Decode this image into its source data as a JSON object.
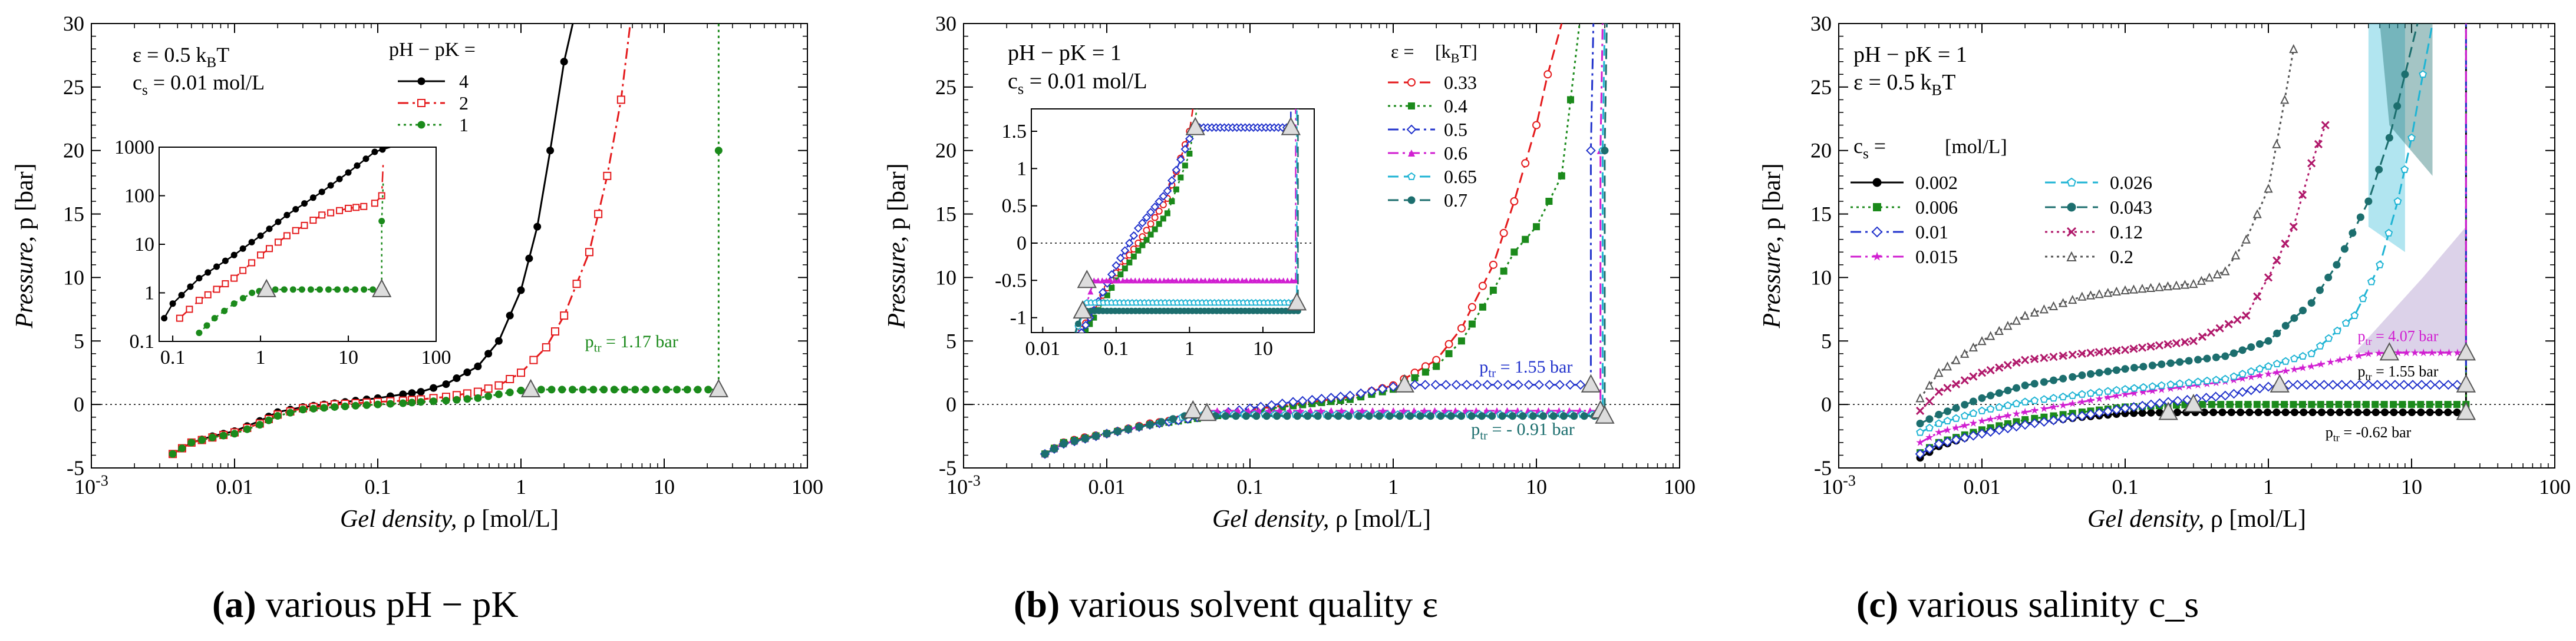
{
  "figure": {
    "captions": [
      {
        "letter": "(a)",
        "text": "various pH − pK"
      },
      {
        "letter": "(b)",
        "text": "various solvent quality ε"
      },
      {
        "letter": "(c)",
        "text": "various salinity c_s"
      }
    ]
  },
  "chart_data": [
    {
      "type": "line",
      "title": "",
      "xlabel": "Gel density, ρ [mol/L]",
      "ylabel": "Pressure, p [bar]",
      "xscale": "log",
      "xlim": [
        0.001,
        100
      ],
      "ylim": [
        -5,
        30
      ],
      "xticks": [
        "10^-3",
        "0.01",
        "0.1",
        "1",
        "10",
        "100"
      ],
      "yticks": [
        "-5",
        "0",
        "5",
        "10",
        "15",
        "20",
        "25",
        "30"
      ],
      "annotations": [
        "ε = 0.5 k_BT",
        "c_s = 0.01 mol/L",
        "p_tr = 1.17 bar"
      ],
      "legend_title": "pH − pK =",
      "series": [
        {
          "name": "4",
          "color": "#000000",
          "marker": "filled-circle",
          "dash": "solid",
          "x": [
            0.0037,
            0.005,
            0.007,
            0.01,
            0.015,
            0.02,
            0.03,
            0.05,
            0.07,
            0.1,
            0.15,
            0.2,
            0.3,
            0.5,
            0.7,
            1.0,
            1.3,
            1.6,
            2.0,
            2.3
          ],
          "y": [
            -3.9,
            -3.0,
            -2.5,
            -2.1,
            -1.3,
            -0.6,
            -0.2,
            0.1,
            0.3,
            0.5,
            0.8,
            1.0,
            1.6,
            3.0,
            5.0,
            9.0,
            14.0,
            20.0,
            27.0,
            30.0
          ]
        },
        {
          "name": "2",
          "color": "#e41a1c",
          "marker": "open-square",
          "dash": "dash-dot",
          "x": [
            0.0037,
            0.005,
            0.007,
            0.01,
            0.015,
            0.02,
            0.03,
            0.05,
            0.07,
            0.1,
            0.15,
            0.2,
            0.3,
            0.5,
            0.7,
            1.0,
            1.5,
            2.0,
            3.0,
            4.0,
            5.0,
            5.8
          ],
          "y": [
            -3.9,
            -3.0,
            -2.6,
            -2.2,
            -1.5,
            -0.8,
            -0.3,
            0.0,
            0.1,
            0.2,
            0.3,
            0.4,
            0.6,
            1.0,
            1.5,
            2.5,
            4.5,
            7.0,
            12.0,
            18.0,
            24.0,
            30.0
          ]
        },
        {
          "name": "1",
          "color": "#1b8a1b",
          "marker": "filled-circle",
          "dash": "dotted",
          "x": [
            0.0037,
            0.005,
            0.007,
            0.01,
            0.015,
            0.02,
            0.03,
            0.05,
            0.07,
            0.1,
            0.15,
            0.2,
            0.3,
            0.5,
            0.7,
            1.0,
            1.17,
            24.0,
            24.0,
            24.0
          ],
          "y": [
            -3.9,
            -3.0,
            -2.6,
            -2.3,
            -1.6,
            -0.9,
            -0.4,
            -0.2,
            -0.1,
            0.0,
            0.1,
            0.2,
            0.3,
            0.5,
            0.8,
            1.1,
            1.17,
            1.17,
            20.0,
            30.0
          ]
        }
      ],
      "inset": {
        "xscale": "log",
        "yscale": "log",
        "xlim": [
          0.07,
          100
        ],
        "ylim": [
          0.1,
          1000
        ],
        "xticks": [
          "0.1",
          "1",
          "10",
          "100"
        ],
        "yticks": [
          "0.1",
          "1",
          "10",
          "100",
          "1000"
        ],
        "series": [
          {
            "name": "4",
            "x": [
              0.08,
              0.1,
              0.2,
              0.5,
              1.0,
              2.0,
              5.0,
              10.0,
              20.0,
              30.0
            ],
            "y": [
              0.3,
              0.6,
              2.0,
              6.0,
              15.0,
              40.0,
              120.0,
              300.0,
              800.0,
              1000.0
            ]
          },
          {
            "name": "2",
            "x": [
              0.12,
              0.2,
              0.5,
              1.0,
              2.0,
              5.0,
              10.0,
              15.0,
              20.0,
              24.0,
              25.0
            ],
            "y": [
              0.3,
              0.7,
              2.0,
              6.0,
              15.0,
              40.0,
              55.0,
              60.0,
              70.0,
              100.0,
              500.0
            ]
          },
          {
            "name": "1",
            "x": [
              0.2,
              0.3,
              0.5,
              0.8,
              1.17,
              24.0,
              24.0,
              25.0
            ],
            "y": [
              0.15,
              0.3,
              0.6,
              1.0,
              1.17,
              1.17,
              30.0,
              200.0
            ]
          }
        ]
      }
    },
    {
      "type": "line",
      "title": "",
      "xlabel": "Gel density, ρ [mol/L]",
      "ylabel": "Pressure, p [bar]",
      "xscale": "log",
      "xlim": [
        0.001,
        100
      ],
      "ylim": [
        -5,
        30
      ],
      "xticks": [
        "10^-3",
        "0.01",
        "0.1",
        "1",
        "10",
        "100"
      ],
      "yticks": [
        "-5",
        "0",
        "5",
        "10",
        "15",
        "20",
        "25",
        "30"
      ],
      "annotations": [
        "pH − pK = 1",
        "c_s = 0.01 mol/L",
        "p_tr = 1.55 bar",
        "p_tr = - 0.91 bar"
      ],
      "legend_title": "ε =",
      "legend_unit": "[k_BT]",
      "series": [
        {
          "name": "0.33",
          "color": "#e41a1c",
          "marker": "open-circle",
          "dash": "dashed",
          "x": [
            0.0037,
            0.005,
            0.007,
            0.01,
            0.02,
            0.05,
            0.1,
            0.2,
            0.5,
            1.0,
            2.0,
            3.0,
            5.0,
            7.0,
            10.0,
            12.0,
            15.0
          ],
          "y": [
            -3.9,
            -3.0,
            -2.6,
            -2.3,
            -1.5,
            -0.9,
            -0.4,
            0.0,
            0.6,
            1.5,
            3.5,
            6.0,
            11.0,
            16.0,
            22.0,
            26.0,
            30.0
          ]
        },
        {
          "name": "0.4",
          "color": "#1b8a1b",
          "marker": "filled-square",
          "dash": "dotted",
          "x": [
            0.0037,
            0.005,
            0.01,
            0.02,
            0.05,
            0.1,
            0.2,
            0.5,
            1.0,
            2.0,
            3.0,
            5.0,
            7.0,
            10.0,
            15.0,
            20.0
          ],
          "y": [
            -3.9,
            -3.0,
            -2.3,
            -1.6,
            -1.0,
            -0.5,
            -0.1,
            0.4,
            1.2,
            3.0,
            5.0,
            9.0,
            12.0,
            14.0,
            18.0,
            30.0
          ]
        },
        {
          "name": "0.5",
          "color": "#2233cc",
          "marker": "open-diamond",
          "dash": "dash-dot",
          "x": [
            0.0037,
            0.005,
            0.01,
            0.02,
            0.05,
            0.1,
            0.2,
            0.5,
            1.0,
            1.2,
            24.0,
            24.0,
            25.0
          ],
          "y": [
            -3.9,
            -3.1,
            -2.3,
            -1.6,
            -0.9,
            -0.3,
            0.2,
            0.7,
            1.4,
            1.55,
            1.55,
            20.0,
            30.0
          ]
        },
        {
          "name": "0.6",
          "color": "#d11fd1",
          "marker": "filled-triangle",
          "dash": "dash-dot",
          "x": [
            0.0037,
            0.005,
            0.01,
            0.02,
            0.04,
            0.05,
            28.0,
            28.0,
            29.0
          ],
          "y": [
            -3.9,
            -3.1,
            -2.3,
            -1.6,
            -0.8,
            -0.5,
            -0.5,
            20.0,
            30.0
          ]
        },
        {
          "name": "0.65",
          "color": "#1fb4d4",
          "marker": "open-pentagon",
          "dash": "dashed",
          "x": [
            0.0037,
            0.005,
            0.01,
            0.02,
            0.04,
            29.0,
            29.0,
            30.0
          ],
          "y": [
            -3.9,
            -3.1,
            -2.3,
            -1.6,
            -0.8,
            -0.8,
            20.0,
            30.0
          ]
        },
        {
          "name": "0.7",
          "color": "#1c6e6e",
          "marker": "filled-circle",
          "dash": "dashed",
          "x": [
            0.0037,
            0.005,
            0.01,
            0.02,
            0.035,
            30.0,
            30.0,
            31.0
          ],
          "y": [
            -3.9,
            -3.1,
            -2.3,
            -1.6,
            -0.91,
            -0.91,
            20.0,
            30.0
          ]
        }
      ],
      "inset": {
        "xscale": "log",
        "yscale": "linear",
        "xlim": [
          0.007,
          50
        ],
        "ylim": [
          -1.2,
          1.8
        ],
        "xticks": [
          "0.01",
          "0.1",
          "1",
          "10"
        ],
        "yticks": [
          "-1",
          "-0.5",
          "0",
          "0.5",
          "1",
          "1.5"
        ]
      }
    },
    {
      "type": "line",
      "title": "",
      "xlabel": "Gel density, ρ [mol/L]",
      "ylabel": "Pressure, p [bar]",
      "xscale": "log",
      "xlim": [
        0.001,
        100
      ],
      "ylim": [
        -5,
        30
      ],
      "xticks": [
        "10^-3",
        "0.01",
        "0.1",
        "1",
        "10",
        "100"
      ],
      "yticks": [
        "-5",
        "0",
        "5",
        "10",
        "15",
        "20",
        "25",
        "30"
      ],
      "annotations": [
        "pH − pK = 1",
        "ε = 0.5 k_BT",
        "p_tr = 4.07 bar",
        "p_tr = 1.55 bar",
        "p_tr = -0.62 bar"
      ],
      "legend_title": "c_s =",
      "legend_unit": "[mol/L]",
      "series": [
        {
          "name": "0.002",
          "color": "#000000",
          "marker": "filled-circle",
          "dash": "solid",
          "x": [
            0.0037,
            0.005,
            0.01,
            0.02,
            0.05,
            0.1,
            0.2,
            24.0,
            24.0
          ],
          "y": [
            -4.2,
            -3.3,
            -2.2,
            -1.5,
            -1.0,
            -0.7,
            -0.62,
            -0.62,
            30.0
          ]
        },
        {
          "name": "0.006",
          "color": "#1b8a1b",
          "marker": "filled-square",
          "dash": "dotted",
          "x": [
            0.0037,
            0.005,
            0.01,
            0.02,
            0.05,
            0.1,
            0.3,
            24.0,
            24.0
          ],
          "y": [
            -3.8,
            -3.0,
            -2.0,
            -1.2,
            -0.6,
            -0.2,
            0.0,
            0.0,
            30.0
          ]
        },
        {
          "name": "0.01",
          "color": "#2233cc",
          "marker": "open-diamond",
          "dash": "dash-dot",
          "x": [
            0.0037,
            0.005,
            0.01,
            0.02,
            0.05,
            0.1,
            0.2,
            0.5,
            1.0,
            1.2,
            24.0,
            24.0
          ],
          "y": [
            -3.9,
            -3.1,
            -2.3,
            -1.6,
            -0.9,
            -0.3,
            0.2,
            0.7,
            1.4,
            1.55,
            1.55,
            30.0
          ]
        },
        {
          "name": "0.015",
          "color": "#d11fd1",
          "marker": "filled-star",
          "dash": "dash-dot",
          "x": [
            0.0037,
            0.005,
            0.01,
            0.02,
            0.05,
            0.1,
            0.5,
            2.0,
            5.0,
            7.0,
            24.0,
            24.0
          ],
          "y": [
            -3.0,
            -2.2,
            -1.3,
            -0.6,
            0.2,
            0.8,
            1.8,
            3.0,
            4.0,
            4.07,
            4.07,
            30.0
          ]
        },
        {
          "name": "0.026",
          "color": "#1fb4d4",
          "marker": "open-pentagon",
          "dash": "dashed",
          "x": [
            0.0037,
            0.005,
            0.01,
            0.02,
            0.05,
            0.1,
            0.5,
            2.0,
            4.0,
            6.0,
            8.0,
            10.0,
            12.0,
            14.0
          ],
          "y": [
            -2.2,
            -1.5,
            -0.5,
            0.2,
            0.8,
            1.2,
            2.0,
            4.0,
            7.0,
            11.0,
            16.0,
            21.0,
            26.0,
            30.0
          ]
        },
        {
          "name": "0.043",
          "color": "#1c6e6e",
          "marker": "filled-circle",
          "dash": "dashed",
          "x": [
            0.0037,
            0.005,
            0.01,
            0.02,
            0.05,
            0.1,
            0.5,
            1.0,
            2.0,
            3.0,
            5.0,
            7.0,
            9.0,
            11.0
          ],
          "y": [
            -1.5,
            -0.8,
            0.5,
            1.5,
            2.3,
            2.8,
            3.8,
            5.0,
            8.0,
            11.0,
            16.0,
            21.0,
            26.0,
            30.0
          ]
        },
        {
          "name": "0.12",
          "color": "#b0186a",
          "marker": "x",
          "dash": "dotted",
          "x": [
            0.0037,
            0.005,
            0.01,
            0.02,
            0.05,
            0.1,
            0.3,
            0.7,
            1.0,
            1.5,
            2.0,
            2.5
          ],
          "y": [
            -0.5,
            1.0,
            2.5,
            3.5,
            4.0,
            4.3,
            5.0,
            7.0,
            10.0,
            14.0,
            19.0,
            22.0
          ]
        },
        {
          "name": "0.2",
          "color": "#555555",
          "marker": "open-triangle",
          "dash": "dotted",
          "x": [
            0.0037,
            0.005,
            0.01,
            0.02,
            0.05,
            0.1,
            0.3,
            0.5,
            0.7,
            1.0,
            1.3,
            1.5
          ],
          "y": [
            0.5,
            2.5,
            5.0,
            7.0,
            8.5,
            9.0,
            9.5,
            10.5,
            13.0,
            17.0,
            24.0,
            28.0
          ]
        }
      ]
    }
  ]
}
